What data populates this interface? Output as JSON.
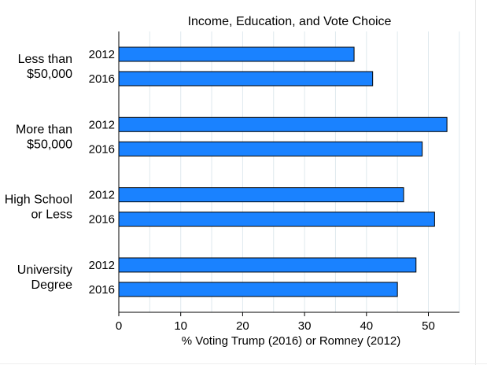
{
  "chart_data": {
    "type": "bar",
    "orientation": "horizontal",
    "title": "Income, Education, and Vote Choice",
    "xlabel": "% Voting Trump (2016) or Romney (2012)",
    "ylabel": "",
    "xlim": [
      0,
      55
    ],
    "xticks": [
      0,
      10,
      20,
      30,
      40,
      50
    ],
    "grid": true,
    "bar_color": "#1a82ff",
    "bar_edge_color": "#000000",
    "grid_color": "#dfe9ee",
    "groups": [
      {
        "label": [
          "Less than",
          "$50,000"
        ],
        "bars": [
          {
            "year": "2012",
            "value": 38
          },
          {
            "year": "2016",
            "value": 41
          }
        ]
      },
      {
        "label": [
          "More than",
          "$50,000"
        ],
        "bars": [
          {
            "year": "2012",
            "value": 53
          },
          {
            "year": "2016",
            "value": 49
          }
        ]
      },
      {
        "label": [
          "High School",
          "or Less"
        ],
        "bars": [
          {
            "year": "2012",
            "value": 46
          },
          {
            "year": "2016",
            "value": 51
          }
        ]
      },
      {
        "label": [
          "University",
          "Degree"
        ],
        "bars": [
          {
            "year": "2012",
            "value": 48
          },
          {
            "year": "2016",
            "value": 45
          }
        ]
      }
    ]
  }
}
